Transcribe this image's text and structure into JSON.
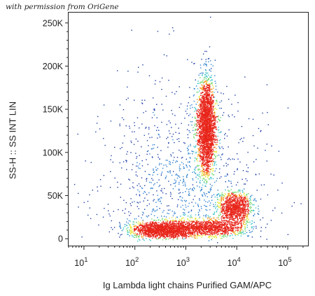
{
  "watermark": "with permission from OriGene",
  "chart_data": {
    "type": "scatter",
    "subtype": "flow-cytometry-density-dot-plot",
    "title": "",
    "xlabel": "Ig Lambda light chains Purified GAM/APC",
    "ylabel": "SS-H :: SS INT LIN",
    "x_scale": "log",
    "xlim": [
      5,
      250000
    ],
    "x_ticks": [
      {
        "value": 10,
        "base": "10",
        "exp": "1"
      },
      {
        "value": 100,
        "base": "10",
        "exp": "2"
      },
      {
        "value": 1000,
        "base": "10",
        "exp": "3"
      },
      {
        "value": 10000,
        "base": "10",
        "exp": "4"
      },
      {
        "value": 100000,
        "base": "10",
        "exp": "5"
      }
    ],
    "y_scale": "linear",
    "ylim": [
      -8000,
      262000
    ],
    "y_ticks": [
      {
        "value": 0,
        "label": "0"
      },
      {
        "value": 50000,
        "label": "50K"
      },
      {
        "value": 100000,
        "label": "100K"
      },
      {
        "value": 150000,
        "label": "150K"
      },
      {
        "value": 200000,
        "label": "200K"
      },
      {
        "value": 250000,
        "label": "250K"
      }
    ],
    "grid": false,
    "legend": "none",
    "colormap": [
      "#1f3fa6",
      "#2d7fd0",
      "#36c2c8",
      "#6fd66a",
      "#e8e83a",
      "#f59a22",
      "#e8251a"
    ],
    "populations": [
      {
        "x_center": 2500,
        "x_log_spread": 0.09,
        "y_center": 130000,
        "y_spread": 28000,
        "weight": 0.34
      },
      {
        "x_center": 350,
        "x_log_spread": 0.3,
        "y_center": 11000,
        "y_spread": 4500,
        "weight": 0.22
      },
      {
        "x_center": 3000,
        "x_log_spread": 0.35,
        "y_center": 13000,
        "y_spread": 5000,
        "weight": 0.14
      },
      {
        "x_center": 9000,
        "x_log_spread": 0.16,
        "y_center": 36000,
        "y_spread": 9000,
        "weight": 0.14
      },
      {
        "x_center": 800,
        "x_log_spread": 0.8,
        "y_center": 60000,
        "y_spread": 60000,
        "weight": 0.16
      }
    ]
  }
}
